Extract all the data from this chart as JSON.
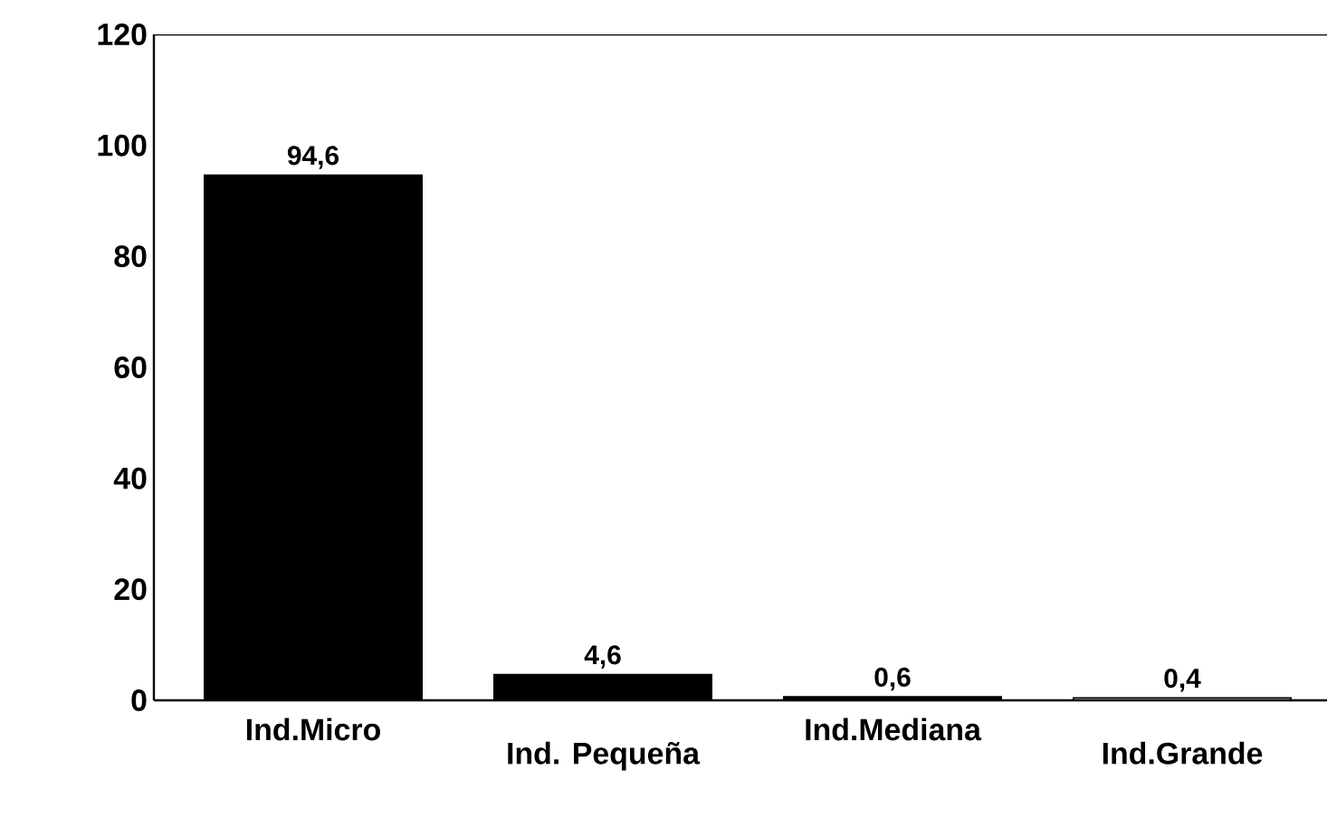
{
  "chart_data": {
    "type": "bar",
    "categories": [
      "Ind.Micro",
      "Ind. Pequeña",
      "Ind.Mediana",
      "Ind.Grande"
    ],
    "values": [
      94.6,
      4.6,
      0.6,
      0.4
    ],
    "colors": [
      "#000000",
      "#000000",
      "#000000",
      "#ffffff"
    ],
    "value_labels": [
      "94,6",
      "4,6",
      "0,6",
      "0,4"
    ],
    "ylim": [
      0,
      120
    ],
    "yticks": [
      0,
      20,
      40,
      60,
      80,
      100,
      120
    ]
  }
}
